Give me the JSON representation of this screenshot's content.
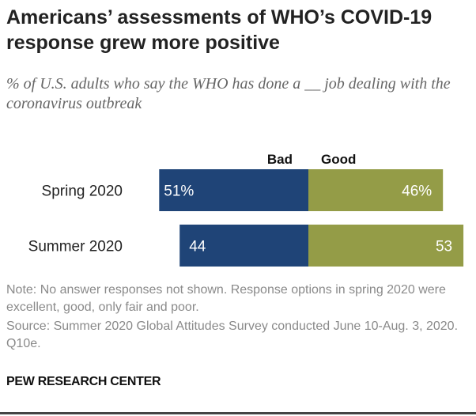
{
  "title": "Americans’ assessments of WHO’s COVID-19 response grew more positive",
  "subtitle": "% of U.S. adults who say the WHO has done a __ job dealing with the coronavirus outbreak",
  "chart_data": {
    "type": "bar",
    "orientation": "horizontal-diverging",
    "categories": [
      "Spring 2020",
      "Summer 2020"
    ],
    "series": [
      {
        "name": "Bad",
        "values": [
          51,
          44
        ],
        "color": "#1f4477",
        "labels": [
          "51%",
          "44"
        ]
      },
      {
        "name": "Good",
        "values": [
          46,
          53
        ],
        "color": "#949c47",
        "labels": [
          "46%",
          "53"
        ]
      }
    ]
  },
  "note": "Note: No answer responses not shown. Response options in spring 2020 were excellent, good, only fair and poor.",
  "source": "Source: Summer 2020 Global Attitudes Survey conducted June 10-Aug. 3, 2020. Q10e.",
  "brand": "PEW RESEARCH CENTER"
}
